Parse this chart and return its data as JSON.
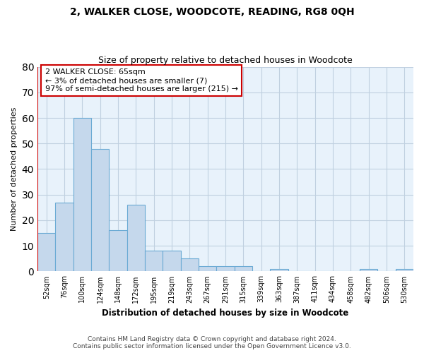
{
  "title": "2, WALKER CLOSE, WOODCOTE, READING, RG8 0QH",
  "subtitle": "Size of property relative to detached houses in Woodcote",
  "xlabel": "Distribution of detached houses by size in Woodcote",
  "ylabel": "Number of detached properties",
  "footer_line1": "Contains HM Land Registry data © Crown copyright and database right 2024.",
  "footer_line2": "Contains public sector information licensed under the Open Government Licence v3.0.",
  "bin_labels": [
    "52sqm",
    "76sqm",
    "100sqm",
    "124sqm",
    "148sqm",
    "172sqm",
    "195sqm",
    "219sqm",
    "243sqm",
    "267sqm",
    "291sqm",
    "315sqm",
    "339sqm",
    "363sqm",
    "387sqm",
    "411sqm",
    "434sqm",
    "458sqm",
    "482sqm",
    "506sqm",
    "530sqm"
  ],
  "bar_values": [
    15,
    27,
    60,
    48,
    16,
    26,
    8,
    8,
    5,
    2,
    2,
    2,
    0,
    1,
    0,
    0,
    0,
    0,
    1,
    0,
    1
  ],
  "bar_color": "#c5d8ec",
  "bar_edge_color": "#6aaad4",
  "background_color": "#ffffff",
  "plot_bg_color": "#e8f2fb",
  "grid_color": "#c0d0e0",
  "annotation_text": "2 WALKER CLOSE: 65sqm\n← 3% of detached houses are smaller (7)\n97% of semi-detached houses are larger (215) →",
  "annotation_box_color": "#ffffff",
  "annotation_box_edge": "#cc0000",
  "ylim": [
    0,
    80
  ],
  "yticks": [
    0,
    10,
    20,
    30,
    40,
    50,
    60,
    70,
    80
  ]
}
